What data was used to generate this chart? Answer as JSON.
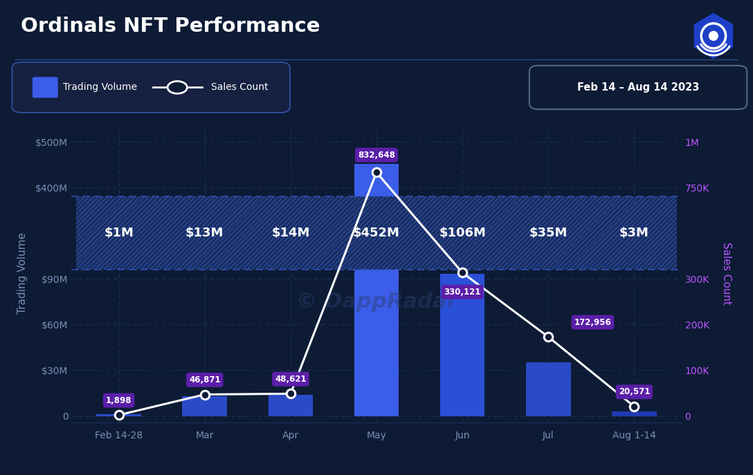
{
  "title": "Ordinals NFT Performance",
  "date_range": "Feb 14 – Aug 14 2023",
  "categories": [
    "Feb 14-28",
    "Mar",
    "Apr",
    "May",
    "Jun",
    "Jul",
    "Aug 1-14"
  ],
  "trading_volume_M": [
    1,
    13,
    14,
    452,
    106,
    35,
    3
  ],
  "sales_count": [
    1898,
    46871,
    48621,
    832648,
    330121,
    172956,
    20571
  ],
  "trading_volume_labels": [
    "$1M",
    "$13M",
    "$14M",
    "$452M",
    "$106M",
    "$35M",
    "$3M"
  ],
  "sales_count_labels": [
    "1,898",
    "46,871",
    "48,621",
    "832,648",
    "330,121",
    "172,956",
    "20,571"
  ],
  "bg_color": "#0d1b35",
  "bar_colors": [
    "#2a4ac7",
    "#2a4ac7",
    "#2a4ac7",
    "#3b5de8",
    "#2a50d8",
    "#2a4ac7",
    "#1e3ab0"
  ],
  "line_color": "#ffffff",
  "label_bg_color": "#5b1fa8",
  "ylabel_left": "Trading Volume",
  "ylabel_right": "Sales Count",
  "left_ytick_display": [
    0,
    1,
    2,
    3,
    5,
    6
  ],
  "left_ytick_labels": [
    "0",
    "$30M",
    "$60M",
    "$90M",
    "$400M",
    "$500M"
  ],
  "right_ytick_display": [
    0,
    1,
    2,
    3,
    5,
    6
  ],
  "right_ytick_labels": [
    "0",
    "100K",
    "200K",
    "300K",
    "750K",
    "1M"
  ],
  "title_color": "#ffffff",
  "tick_color": "#7a8fb5",
  "grid_color": "#1e2e55",
  "axis_label_color_left": "#7a8fb5",
  "axis_label_color_right": "#bb55ff",
  "hatch_color": "#1a2d5a",
  "hatch_line_color": "#2a4aaa",
  "separator_line_color": "#3355bb"
}
